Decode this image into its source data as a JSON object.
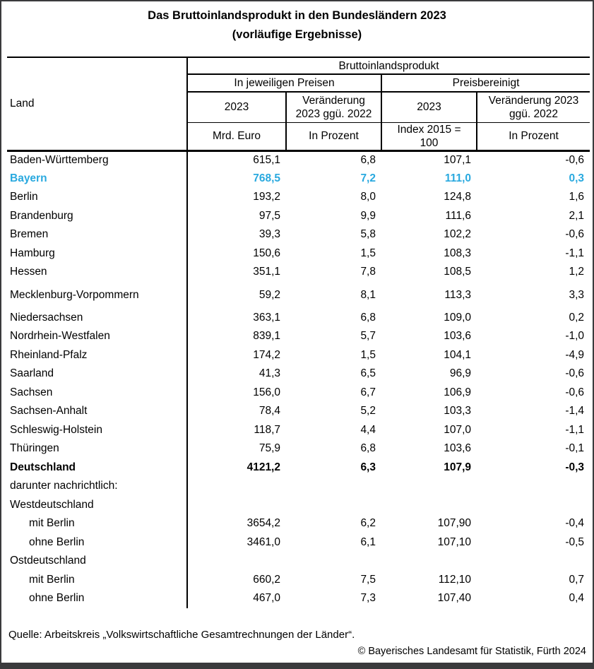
{
  "title": {
    "line1": "Das Bruttoinlandsprodukt in den Bundesländern 2023",
    "line2": "(vorläufige Ergebnisse)"
  },
  "table": {
    "land_header": "Land",
    "group_header": "Bruttoinlandsprodukt",
    "subgroup_headers": [
      "In jeweiligen Preisen",
      "Preisbereinigt"
    ],
    "year_headers": [
      "2023",
      "Veränderung\n2023 ggü. 2022",
      "2023",
      "Veränderung 2023\nggü. 2022"
    ],
    "unit_headers": [
      "Mrd. Euro",
      "In Prozent",
      "Index 2015 =\n100",
      "In Prozent"
    ],
    "rows": [
      {
        "land": "Baden-Württemberg",
        "values": [
          "615,1",
          "6,8",
          "107,1",
          "-0,6"
        ],
        "style": "normal"
      },
      {
        "land": "Bayern",
        "values": [
          "768,5",
          "7,2",
          "111,0",
          "0,3"
        ],
        "style": "highlight"
      },
      {
        "land": "Berlin",
        "values": [
          "193,2",
          "8,0",
          "124,8",
          "1,6"
        ],
        "style": "normal"
      },
      {
        "land": "Brandenburg",
        "values": [
          "97,5",
          "9,9",
          "111,6",
          "2,1"
        ],
        "style": "normal"
      },
      {
        "land": "Bremen",
        "values": [
          "39,3",
          "5,8",
          "102,2",
          "-0,6"
        ],
        "style": "normal"
      },
      {
        "land": "Hamburg",
        "values": [
          "150,6",
          "1,5",
          "108,3",
          "-1,1"
        ],
        "style": "normal"
      },
      {
        "land": "Hessen",
        "values": [
          "351,1",
          "7,8",
          "108,5",
          "1,2"
        ],
        "style": "normal"
      },
      {
        "land": "Mecklenburg-Vorpommern",
        "values": [
          "59,2",
          "8,1",
          "113,3",
          "3,3"
        ],
        "style": "normal",
        "tall": true
      },
      {
        "land": "Niedersachsen",
        "values": [
          "363,1",
          "6,8",
          "109,0",
          "0,2"
        ],
        "style": "normal"
      },
      {
        "land": "Nordrhein-Westfalen",
        "values": [
          "839,1",
          "5,7",
          "103,6",
          "-1,0"
        ],
        "style": "normal"
      },
      {
        "land": "Rheinland-Pfalz",
        "values": [
          "174,2",
          "1,5",
          "104,1",
          "-4,9"
        ],
        "style": "normal"
      },
      {
        "land": "Saarland",
        "values": [
          "41,3",
          "6,5",
          "96,9",
          "-0,6"
        ],
        "style": "normal"
      },
      {
        "land": "Sachsen",
        "values": [
          "156,0",
          "6,7",
          "106,9",
          "-0,6"
        ],
        "style": "normal"
      },
      {
        "land": "Sachsen-Anhalt",
        "values": [
          "78,4",
          "5,2",
          "103,3",
          "-1,4"
        ],
        "style": "normal"
      },
      {
        "land": "Schleswig-Holstein",
        "values": [
          "118,7",
          "4,4",
          "107,0",
          "-1,1"
        ],
        "style": "normal"
      },
      {
        "land": "Thüringen",
        "values": [
          "75,9",
          "6,8",
          "103,6",
          "-0,1"
        ],
        "style": "normal"
      },
      {
        "land": "Deutschland",
        "values": [
          "4121,2",
          "6,3",
          "107,9",
          "-0,3"
        ],
        "style": "bold"
      },
      {
        "land": "darunter nachrichtlich:",
        "values": [
          "",
          "",
          "",
          ""
        ],
        "style": "normal"
      },
      {
        "land": "Westdeutschland",
        "values": [
          "",
          "",
          "",
          ""
        ],
        "style": "normal"
      },
      {
        "land": "mit Berlin",
        "values": [
          "3654,2",
          "6,2",
          "107,90",
          "-0,4"
        ],
        "style": "indent"
      },
      {
        "land": "ohne Berlin",
        "values": [
          "3461,0",
          "6,1",
          "107,10",
          "-0,5"
        ],
        "style": "indent"
      },
      {
        "land": "Ostdeutschland",
        "values": [
          "",
          "",
          "",
          ""
        ],
        "style": "normal"
      },
      {
        "land": "mit Berlin",
        "values": [
          "660,2",
          "7,5",
          "112,10",
          "0,7"
        ],
        "style": "indent"
      },
      {
        "land": "ohne Berlin",
        "values": [
          "467,0",
          "7,3",
          "107,40",
          "0,4"
        ],
        "style": "indent"
      }
    ]
  },
  "footer": {
    "source": "Quelle: Arbeitskreis „Volkswirtschaftliche Gesamtrechnungen der Länder“.",
    "copyright": "© Bayerisches Landesamt für Statistik, Fürth 2024"
  },
  "colors": {
    "highlight": "#29a9df",
    "frame": "#3a3a3c"
  }
}
